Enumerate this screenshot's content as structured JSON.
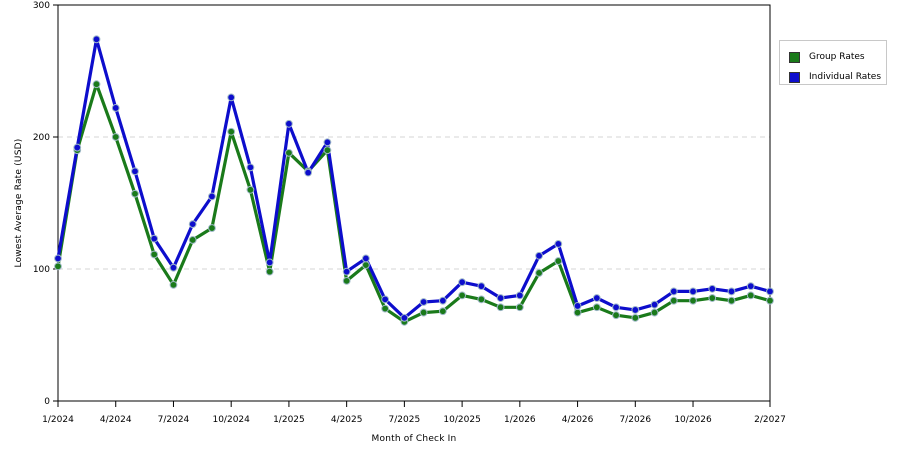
{
  "chart_data": {
    "type": "line",
    "title": "",
    "xlabel": "Month of Check In",
    "ylabel": "Lowest Average Rate (USD)",
    "ylim": [
      0,
      300
    ],
    "yticks": [
      "0",
      "100",
      "200",
      "300"
    ],
    "xticks": [
      "1/2024",
      "4/2024",
      "7/2024",
      "10/2024",
      "1/2025",
      "4/2025",
      "7/2025",
      "10/2025",
      "1/2026",
      "4/2026",
      "7/2026",
      "10/2026",
      "2/2027"
    ],
    "xtick_index": [
      0,
      3,
      6,
      9,
      12,
      15,
      18,
      21,
      24,
      27,
      30,
      33,
      37
    ],
    "x": [
      "1/2024",
      "2/2024",
      "3/2024",
      "4/2024",
      "5/2024",
      "6/2024",
      "7/2024",
      "8/2024",
      "9/2024",
      "10/2024",
      "11/2024",
      "12/2024",
      "1/2025",
      "2/2025",
      "3/2025",
      "4/2025",
      "5/2025",
      "6/2025",
      "7/2025",
      "8/2025",
      "9/2025",
      "10/2025",
      "11/2025",
      "12/2025",
      "1/2026",
      "2/2026",
      "3/2026",
      "4/2026",
      "5/2026",
      "6/2026",
      "7/2026",
      "8/2026",
      "9/2026",
      "10/2026",
      "11/2026",
      "12/2026",
      "1/2027",
      "2/2027"
    ],
    "grid": "horizontal dashed",
    "legend_position": "right",
    "series": [
      {
        "name": "Group Rates",
        "color": "#1a7a1a",
        "values": [
          102,
          190,
          240,
          200,
          157,
          111,
          88,
          122,
          131,
          204,
          160,
          98,
          188,
          174,
          190,
          91,
          103,
          70,
          60,
          67,
          68,
          80,
          77,
          71,
          71,
          97,
          106,
          67,
          71,
          65,
          63,
          67,
          76,
          76,
          78,
          76,
          80,
          76
        ]
      },
      {
        "name": "Individual Rates",
        "color": "#0d0dcc",
        "values": [
          108,
          192,
          274,
          222,
          174,
          123,
          101,
          134,
          155,
          230,
          177,
          105,
          210,
          173,
          196,
          98,
          108,
          77,
          63,
          75,
          76,
          90,
          87,
          78,
          80,
          110,
          119,
          72,
          78,
          71,
          69,
          73,
          83,
          83,
          85,
          83,
          87,
          83
        ]
      }
    ]
  }
}
